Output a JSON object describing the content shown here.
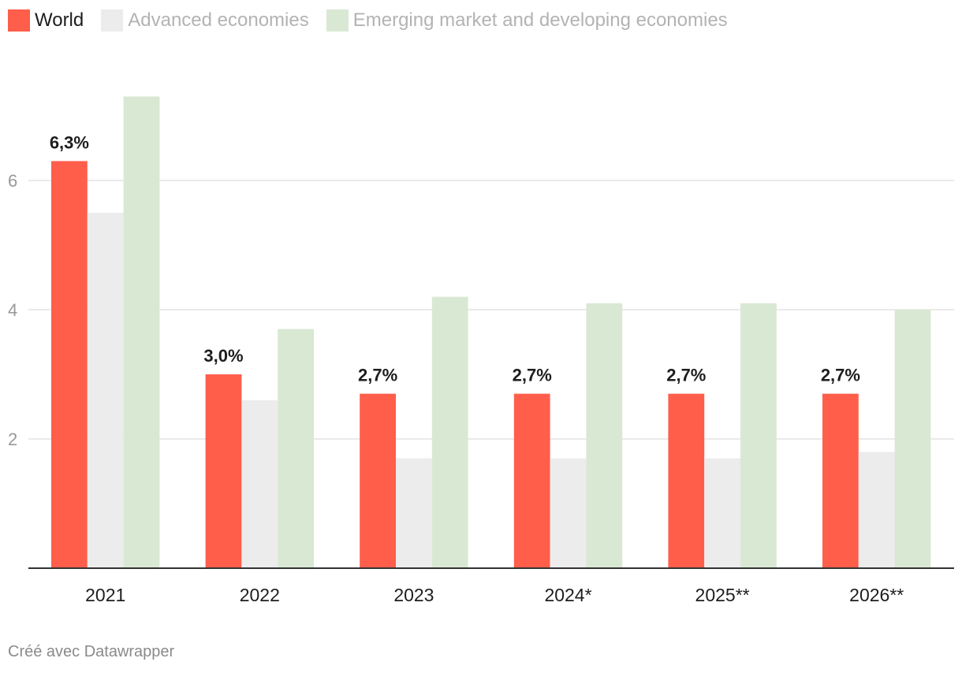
{
  "chart_data": {
    "type": "bar",
    "title": "",
    "xlabel": "",
    "ylabel": "",
    "categories": [
      "2021",
      "2022",
      "2023",
      "2024*",
      "2025**",
      "2026**"
    ],
    "series": [
      {
        "name": "World",
        "values": [
          6.3,
          3.0,
          2.7,
          2.7,
          2.7,
          2.7
        ],
        "color": "#ff5e4b",
        "active": true
      },
      {
        "name": "Advanced economies",
        "values": [
          5.5,
          2.6,
          1.7,
          1.7,
          1.7,
          1.8
        ],
        "color": "#ececec",
        "active": false
      },
      {
        "name": "Emerging market and developing economies",
        "values": [
          7.3,
          3.7,
          4.2,
          4.1,
          4.1,
          4.0
        ],
        "color": "#d9e8d3",
        "active": false
      }
    ],
    "data_labels": [
      "6,3%",
      "3,0%",
      "2,7%",
      "2,7%",
      "2,7%",
      "2,7%"
    ],
    "y_ticks": [
      "2",
      "4",
      "6"
    ],
    "y_tick_values": [
      2,
      4,
      6
    ],
    "ylim": [
      0,
      7.5
    ],
    "grid": true,
    "legend_position": "top-left"
  },
  "colors": {
    "grid": "#dddddd",
    "axis": "#333333",
    "tick_label": "#999999",
    "category_label": "#1d1d1d",
    "data_label": "#1d1d1d"
  },
  "footer": {
    "credit": "Créé avec Datawrapper"
  }
}
